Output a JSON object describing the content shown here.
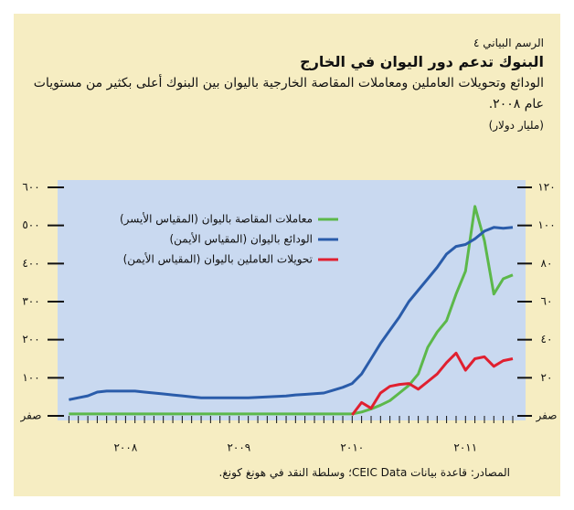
{
  "chart_data": {
    "type": "line",
    "label": "الرسم البياني ٤",
    "title": "البنوك تدعم دور اليوان في الخارج",
    "subtitle": "الودائع وتحويلات العاملين ومعاملات المقاصة الخارجية باليوان بين البنوك أعلى بكثير من مستويات عام ٢٠٠٨.",
    "unit": "(مليار دولار)",
    "source": "المصادر: قاعدة بيانات CEIC Data؛ وسلطة النقد في هونغ كونغ.",
    "x": [
      2008,
      2008.083,
      2008.167,
      2008.25,
      2008.333,
      2008.417,
      2008.5,
      2008.583,
      2008.667,
      2008.75,
      2008.833,
      2008.917,
      2009,
      2009.083,
      2009.167,
      2009.25,
      2009.333,
      2009.417,
      2009.5,
      2009.583,
      2009.667,
      2009.75,
      2009.833,
      2009.917,
      2010,
      2010.083,
      2010.167,
      2010.25,
      2010.333,
      2010.417,
      2010.5,
      2010.583,
      2010.667,
      2010.75,
      2010.833,
      2010.917,
      2011,
      2011.083,
      2011.167,
      2011.25,
      2011.333,
      2011.417,
      2011.5,
      2011.583,
      2011.667,
      2011.75,
      2011.833,
      2011.917
    ],
    "xlim": [
      2007.9,
      2012.03
    ],
    "xticks": [
      {
        "value": 2008.5,
        "label": "٢٠٠٨"
      },
      {
        "value": 2009.5,
        "label": "٢٠٠٩"
      },
      {
        "value": 2010.5,
        "label": "٢٠١٠"
      },
      {
        "value": 2011.5,
        "label": "٢٠١١"
      }
    ],
    "ylim": [
      0,
      600
    ],
    "yticks": [
      {
        "value": 0,
        "label": "صفر"
      },
      {
        "value": 100,
        "label": "١٠٠"
      },
      {
        "value": 200,
        "label": "٢٠٠"
      },
      {
        "value": 300,
        "label": "٣٠٠"
      },
      {
        "value": 400,
        "label": "٤٠٠"
      },
      {
        "value": 500,
        "label": "٥٠٠"
      },
      {
        "value": 600,
        "label": "٦٠٠"
      }
    ],
    "y2lim": [
      0,
      120
    ],
    "y2ticks": [
      {
        "value": 0,
        "label": "صفر"
      },
      {
        "value": 20,
        "label": "٢٠"
      },
      {
        "value": 40,
        "label": "٤٠"
      },
      {
        "value": 60,
        "label": "٦٠"
      },
      {
        "value": 80,
        "label": "٨٠"
      },
      {
        "value": 100,
        "label": "١٠٠"
      },
      {
        "value": 120,
        "label": "١٢٠"
      }
    ],
    "series": [
      {
        "name": "معاملات المقاصة باليوان (المقياس الأيسر)",
        "color": "#5cb84a",
        "axis": "y",
        "values": [
          5,
          5,
          5,
          5,
          5,
          5,
          5,
          5,
          5,
          5,
          5,
          5,
          5,
          5,
          5,
          5,
          5,
          5,
          5,
          5,
          5,
          5,
          5,
          5,
          5,
          5,
          5,
          5,
          5,
          5,
          5,
          10,
          18,
          28,
          40,
          60,
          80,
          110,
          180,
          220,
          250,
          320,
          380,
          550,
          460,
          320,
          360,
          370
        ]
      },
      {
        "name": "الودائع باليوان (المقياس الأيمن)",
        "color": "#2a5caa",
        "axis": "y2",
        "values": [
          8.5,
          9.5,
          10.5,
          12.5,
          13,
          13,
          13,
          13,
          12.5,
          12,
          11.5,
          11,
          10.5,
          10,
          9.5,
          9.5,
          9.5,
          9.5,
          9.5,
          9.5,
          9.7,
          10,
          10.2,
          10.4,
          11,
          11.3,
          11.6,
          12,
          13.5,
          15,
          17,
          22,
          30,
          38,
          45,
          52,
          60,
          66,
          72,
          78,
          85,
          89,
          90,
          93,
          97,
          99,
          98.5,
          99
        ]
      },
      {
        "name": "تحويلات العاملين باليوان (المقياس الأيمن)",
        "color": "#e02030",
        "axis": "y2",
        "values": [
          null,
          null,
          null,
          null,
          null,
          null,
          null,
          null,
          null,
          null,
          null,
          null,
          null,
          null,
          null,
          null,
          null,
          null,
          null,
          null,
          null,
          null,
          null,
          null,
          null,
          null,
          null,
          null,
          null,
          null,
          0.5,
          7,
          4,
          12,
          15.5,
          16.5,
          17,
          14,
          18,
          22,
          28,
          33,
          24,
          30,
          31,
          26,
          29,
          30
        ]
      }
    ]
  }
}
